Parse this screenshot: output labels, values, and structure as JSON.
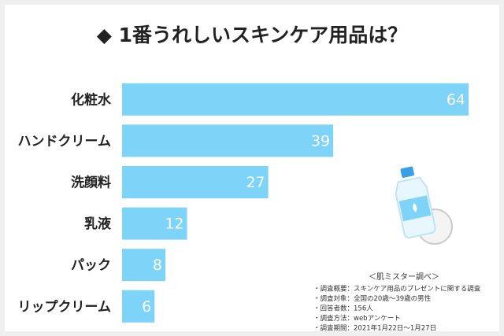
{
  "chart_data": {
    "type": "hbar",
    "title": "◆ 1番うれしいスキンケア用品は？",
    "categories": [
      "化粧水",
      "ハンドクリーム",
      "洗顔料",
      "乳液",
      "パック",
      "リップクリーム"
    ],
    "values": [
      64,
      39,
      27,
      12,
      8,
      6
    ],
    "color": "#7dd3f8",
    "source": "＜肌ミスター調べ＞",
    "notes": [
      "・調査概要：スキンケア用品のプレゼントに関する調査",
      "・調査対象：全国の20歳～39歳の男性",
      "・回答者数：156人",
      "・調査方法：webアンケート",
      "・調査期間：2021年1月22日～1月27日"
    ]
  }
}
